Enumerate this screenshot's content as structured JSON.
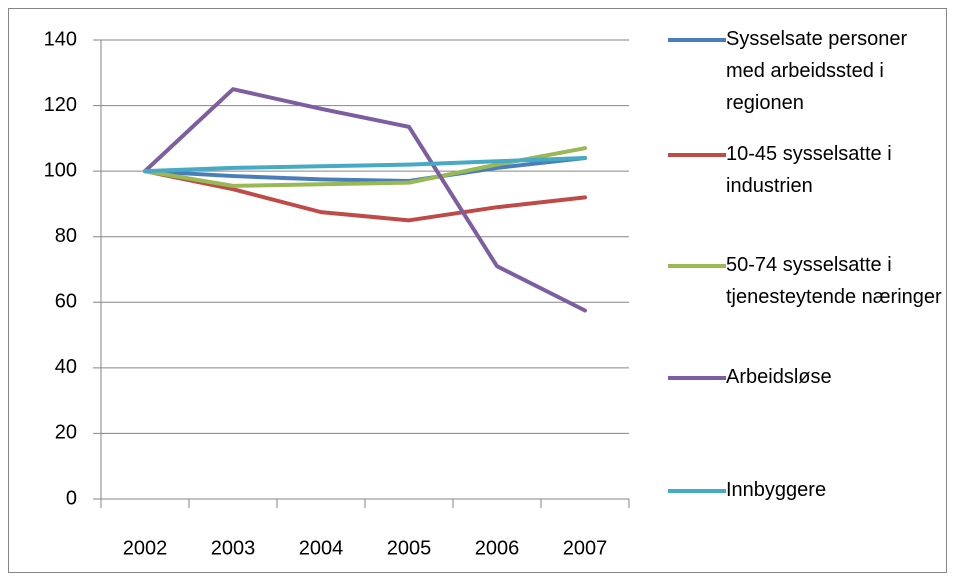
{
  "chart_data": {
    "type": "line",
    "categories": [
      "2002",
      "2003",
      "2004",
      "2005",
      "2006",
      "2007"
    ],
    "series": [
      {
        "name": "Sysselsate personer med arbeidssted i regionen",
        "color": "#4a7ebb",
        "values": [
          100,
          98.5,
          97.5,
          97,
          101,
          104
        ]
      },
      {
        "name": "10-45 sysselsatte i industrien",
        "color": "#be4b48",
        "values": [
          100,
          94.5,
          87.5,
          85,
          89,
          92
        ]
      },
      {
        "name": "50-74 sysselsatte i tjenesteytende næringer",
        "color": "#98b954",
        "values": [
          100,
          95.5,
          96,
          96.5,
          102,
          107
        ]
      },
      {
        "name": "Arbeidsløse",
        "color": "#7d5fa0",
        "values": [
          100,
          125,
          119,
          113.5,
          71,
          57.5
        ]
      },
      {
        "name": "Innbyggere",
        "color": "#46aac5",
        "values": [
          100,
          101,
          101.5,
          102,
          103,
          104
        ]
      }
    ],
    "ylim": [
      0,
      140
    ],
    "yticks": [
      0,
      20,
      40,
      60,
      80,
      100,
      120,
      140
    ],
    "grid": true,
    "legend": "right"
  }
}
